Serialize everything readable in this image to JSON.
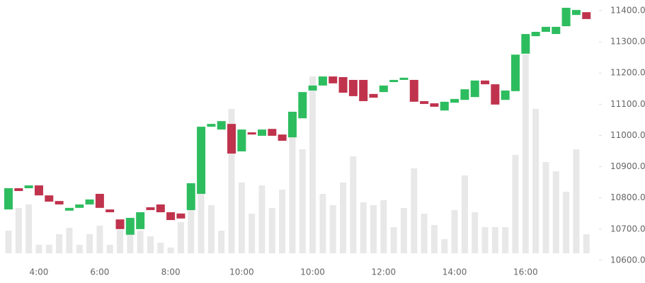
{
  "chart_data": {
    "type": "candlestick",
    "categories": [
      null,
      null,
      null,
      "4:00",
      null,
      null,
      null,
      null,
      null,
      "6:00",
      null,
      null,
      null,
      null,
      null,
      null,
      "8:00",
      null,
      null,
      null,
      null,
      null,
      null,
      "10:00",
      null,
      null,
      null,
      null,
      null,
      null,
      "10:00",
      null,
      null,
      null,
      null,
      null,
      null,
      "12:00",
      null,
      null,
      null,
      null,
      null,
      null,
      "14:00",
      null,
      null,
      null,
      null,
      null,
      null,
      "16:00",
      null,
      null,
      null,
      null,
      null,
      null
    ],
    "open": [
      10763,
      10831,
      10831,
      10840,
      10808,
      10790,
      10759,
      10768,
      10779,
      10813,
      10763,
      10731,
      10682,
      10700,
      10770,
      10779,
      10754,
      10750,
      10761,
      10813,
      11028,
      11019,
      11037,
      10949,
      11010,
      10999,
      11021,
      11003,
      10994,
      11055,
      11144,
      11160,
      11189,
      11187,
      11178,
      11178,
      11133,
      11139,
      11171,
      11178,
      11178,
      11110,
      11103,
      11080,
      11105,
      11114,
      11123,
      11176,
      11164,
      11114,
      11142,
      11262,
      11318,
      11332,
      11325,
      11350,
      11386,
      11395
    ],
    "close": [
      10831,
      10822,
      10840,
      10808,
      10788,
      10779,
      10768,
      10779,
      10795,
      10768,
      10754,
      10700,
      10736,
      10754,
      10761,
      10754,
      10729,
      10734,
      10847,
      11028,
      11037,
      11046,
      10942,
      11019,
      11003,
      11019,
      10999,
      10983,
      11076,
      11139,
      11160,
      11189,
      11167,
      11137,
      11126,
      11110,
      11121,
      11160,
      11178,
      11185,
      11108,
      11101,
      11092,
      11108,
      11117,
      11148,
      11176,
      11164,
      11099,
      11144,
      11259,
      11325,
      11332,
      11348,
      11348,
      11409,
      11402,
      11373
    ],
    "volume": [
      32,
      64,
      69,
      12,
      12,
      27,
      36,
      12,
      27,
      39,
      12,
      33,
      32,
      32,
      24,
      15,
      8,
      44,
      85,
      155,
      68,
      32,
      204,
      100,
      56,
      96,
      64,
      90,
      179,
      147,
      250,
      84,
      68,
      100,
      137,
      72,
      68,
      75,
      37,
      64,
      120,
      56,
      40,
      20,
      61,
      110,
      58,
      37,
      37,
      37,
      139,
      281,
      204,
      129,
      116,
      87,
      147,
      27
    ],
    "up_color": "#2dbd5f",
    "down_color": "#c0334d",
    "volume_color": "#e8e8e8",
    "ylim": [
      10584,
      11434
    ],
    "yticks": [
      {
        "value": 10600,
        "label": "10600.0"
      },
      {
        "value": 10700,
        "label": "10700.0"
      },
      {
        "value": 10800,
        "label": "10800.0"
      },
      {
        "value": 10900,
        "label": "10900.0"
      },
      {
        "value": 11000,
        "label": "11000.0"
      },
      {
        "value": 11100,
        "label": "11100.0"
      },
      {
        "value": 11200,
        "label": "11200.0"
      },
      {
        "value": 11300,
        "label": "11300.0"
      },
      {
        "value": 11400,
        "label": "11400.0"
      }
    ]
  }
}
